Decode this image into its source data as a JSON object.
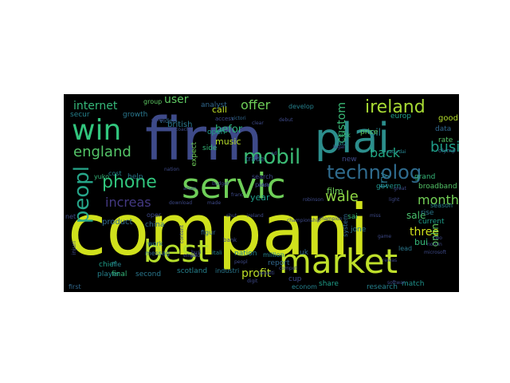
{
  "colors": {
    "page_background": "#ffffff",
    "cloud_background": "#000000",
    "palette": [
      "#d0e11c",
      "#b5de2b",
      "#6ece58",
      "#35b779",
      "#1f9e89",
      "#26828e",
      "#31688e",
      "#3e4a89",
      "#482878",
      "#440154"
    ]
  },
  "words": [
    {
      "text": "compani",
      "color": "#d0e11c",
      "rot": 0
    },
    {
      "text": "firm",
      "color": "#3e4a89",
      "rot": 0
    },
    {
      "text": "plai",
      "color": "#2c8e8c",
      "rot": 0
    },
    {
      "text": "servic",
      "color": "#6ece58",
      "rot": 0
    },
    {
      "text": "win",
      "color": "#31c57d",
      "rot": 0
    },
    {
      "text": "market",
      "color": "#bfe02a",
      "rot": 0
    },
    {
      "text": "best",
      "color": "#b5de2b",
      "rot": 0
    },
    {
      "text": "peopl",
      "color": "#26a68a",
      "rot": 90
    },
    {
      "text": "technolog",
      "color": "#2f6b8e",
      "rot": 0
    },
    {
      "text": "ireland",
      "color": "#a8db34",
      "rot": 0
    },
    {
      "text": "mobil",
      "color": "#3bbb75",
      "rot": 0
    },
    {
      "text": "phone",
      "color": "#31c57d",
      "rot": 0
    },
    {
      "text": "england",
      "color": "#54c568",
      "rot": 0
    },
    {
      "text": "custom",
      "color": "#3aba76",
      "rot": 90
    },
    {
      "text": "wale",
      "color": "#8fd744",
      "rot": 0
    },
    {
      "text": "increas",
      "color": "#443983",
      "rot": 0
    },
    {
      "text": "offer",
      "color": "#6ece58",
      "rot": 0
    },
    {
      "text": "internet",
      "color": "#35b779",
      "rot": 0
    },
    {
      "text": "back",
      "color": "#22a884",
      "rot": 0
    },
    {
      "text": "busi",
      "color": "#1f9e89",
      "rot": 0
    },
    {
      "text": "month",
      "color": "#73d056",
      "rot": 0
    },
    {
      "text": "user",
      "color": "#5ec962",
      "rot": 0
    },
    {
      "text": "befor",
      "color": "#2db27d",
      "rot": 0
    },
    {
      "text": "sale",
      "color": "#4ac16d",
      "rot": 0
    },
    {
      "text": "three",
      "color": "#d0e11c",
      "rot": 0
    },
    {
      "text": "try",
      "color": "#2a788e",
      "rot": 90
    },
    {
      "text": "profit",
      "color": "#bddf26",
      "rot": 0
    },
    {
      "text": "onlin",
      "color": "#5ec962",
      "rot": 90
    },
    {
      "text": "call",
      "color": "#c0df25",
      "rot": 0
    },
    {
      "text": "bui",
      "color": "#35b779",
      "rot": 0
    },
    {
      "text": "music",
      "color": "#b5de2b",
      "rot": 0
    },
    {
      "text": "film",
      "color": "#6ece58",
      "rot": 0
    },
    {
      "text": "year",
      "color": "#1f9e89",
      "rot": 0
    },
    {
      "text": "oil",
      "color": "#26828e",
      "rot": 0
    },
    {
      "text": "secur",
      "color": "#26828e",
      "rot": 0
    },
    {
      "text": "growth",
      "color": "#2a788e",
      "rot": 0
    },
    {
      "text": "british",
      "color": "#2a788e",
      "rot": 0
    },
    {
      "text": "open",
      "color": "#1f9e89",
      "rot": 0
    },
    {
      "text": "side",
      "color": "#35b779",
      "rot": 0
    },
    {
      "text": "expect",
      "color": "#6ece58",
      "rot": 90
    },
    {
      "text": "trade",
      "color": "#31688e",
      "rot": 0
    },
    {
      "text": "search",
      "color": "#3e4a89",
      "rot": 0
    },
    {
      "text": "develop",
      "color": "#26828e",
      "rot": 0
    },
    {
      "text": "analyst",
      "color": "#31688e",
      "rot": 0
    },
    {
      "text": "group",
      "color": "#5ec962",
      "rot": 0
    },
    {
      "text": "europ",
      "color": "#1f9e89",
      "rot": 0
    },
    {
      "text": "good",
      "color": "#b5de2b",
      "rot": 0
    },
    {
      "text": "data",
      "color": "#31688e",
      "rot": 0
    },
    {
      "text": "rate",
      "color": "#54c568",
      "rot": 0
    },
    {
      "text": "price",
      "color": "#5ec962",
      "rot": 0
    },
    {
      "text": "kick",
      "color": "#35b779",
      "rot": 0
    },
    {
      "text": "six",
      "color": "#26828e",
      "rot": 0
    },
    {
      "text": "new",
      "color": "#3e4a89",
      "rot": 0
    },
    {
      "text": "govern",
      "color": "#20928c",
      "rot": 0
    },
    {
      "text": "grand",
      "color": "#35b779",
      "rot": 0
    },
    {
      "text": "broadband",
      "color": "#54c568",
      "rot": 0
    },
    {
      "text": "rise",
      "color": "#2a788e",
      "rot": 0
    },
    {
      "text": "current",
      "color": "#1f9e89",
      "rot": 0
    },
    {
      "text": "season",
      "color": "#26828e",
      "rot": 0
    },
    {
      "text": "product",
      "color": "#31688e",
      "rot": 0
    },
    {
      "text": "cost",
      "color": "#26828e",
      "rot": 0
    },
    {
      "text": "help",
      "color": "#2a788e",
      "rot": 0
    },
    {
      "text": "yuko",
      "color": "#35b779",
      "rot": 0
    },
    {
      "text": "oper",
      "color": "#3e4a89",
      "rot": 0
    },
    {
      "text": "china",
      "color": "#31688e",
      "rot": 0
    },
    {
      "text": "work",
      "color": "#2a788e",
      "rot": 0
    },
    {
      "text": "chief",
      "color": "#1f9e89",
      "rot": 0
    },
    {
      "text": "player",
      "color": "#26828e",
      "rot": 0
    },
    {
      "text": "file",
      "color": "#26828e",
      "rot": 0
    },
    {
      "text": "final",
      "color": "#35b779",
      "rot": 0
    },
    {
      "text": "second",
      "color": "#2a788e",
      "rot": 0
    },
    {
      "text": "scotland",
      "color": "#26828e",
      "rot": 0
    },
    {
      "text": "industri",
      "color": "#2a788e",
      "rot": 0
    },
    {
      "text": "report",
      "color": "#31688e",
      "rot": 0
    },
    {
      "text": "cup",
      "color": "#3e4a89",
      "rot": 0
    },
    {
      "text": "econom",
      "color": "#26828e",
      "rot": 0
    },
    {
      "text": "share",
      "color": "#1f9e89",
      "rot": 0
    },
    {
      "text": "research",
      "color": "#26828e",
      "rot": 0
    },
    {
      "text": "match",
      "color": "#20928c",
      "rot": 0
    },
    {
      "text": "sai",
      "color": "#35b779",
      "rot": 0
    },
    {
      "text": "jone",
      "color": "#2a788e",
      "rot": 0
    },
    {
      "text": "uk",
      "color": "#31688e",
      "rot": 0
    },
    {
      "text": "lead",
      "color": "#2a788e",
      "rot": 0
    },
    {
      "text": "first",
      "color": "#31688e",
      "rot": 0
    },
    {
      "text": "video",
      "color": "#31688e",
      "rot": 0
    },
    {
      "text": "net",
      "color": "#3e4a89",
      "rot": 0
    },
    {
      "text": "provid",
      "color": "#26828e",
      "rot": 90
    },
    {
      "text": "injuri",
      "color": "#3e4a89",
      "rot": 90
    },
    {
      "text": "messag",
      "color": "#31688e",
      "rot": 0
    },
    {
      "text": "nation",
      "color": "#26828e",
      "rot": 0
    },
    {
      "text": "bank",
      "color": "#3e4a89",
      "rot": 0
    },
    {
      "text": "itali",
      "color": "#26828e",
      "rot": 0
    },
    {
      "text": "million",
      "color": "#26828e",
      "rot": 0
    },
    {
      "text": "figur",
      "color": "#31688e",
      "rot": 0
    },
    {
      "text": "plan",
      "color": "#3e4a89",
      "rot": 0
    },
    {
      "text": "system",
      "color": "#31688e",
      "rot": 90
    },
    {
      "text": "saturdai",
      "color": "#26828e",
      "rot": 0
    },
    {
      "text": "olymp",
      "color": "#31688e",
      "rot": 0
    },
    {
      "text": "email",
      "color": "#3e4a89",
      "rot": 0
    },
    {
      "text": "access",
      "color": "#3e4a89",
      "rot": 0
    },
    {
      "text": "victori",
      "color": "#31688e",
      "rot": 0
    },
    {
      "text": "econ",
      "color": "#3e4a89",
      "rot": 0
    },
    {
      "text": "penalti",
      "color": "#3e4a89",
      "rot": 0
    },
    {
      "text": "softwar",
      "color": "#3e4a89",
      "rot": 0
    },
    {
      "text": "franc",
      "color": "#3e4a89",
      "rot": 0
    },
    {
      "text": "champion",
      "color": "#3e4a89",
      "rot": 0
    },
    {
      "text": "game",
      "color": "#3e4a89",
      "rot": 0
    },
    {
      "text": "miss",
      "color": "#3e4a89",
      "rot": 0
    },
    {
      "text": "great",
      "color": "#3e4a89",
      "rot": 0
    },
    {
      "text": "light",
      "color": "#3e4a89",
      "rot": 0
    },
    {
      "text": "nomin",
      "color": "#3e4a89",
      "rot": 0
    },
    {
      "text": "releas",
      "color": "#3e4a89",
      "rot": 0
    },
    {
      "text": "two",
      "color": "#3e4a89",
      "rot": 0
    },
    {
      "text": "clear",
      "color": "#3e4a89",
      "rot": 0
    },
    {
      "text": "debut",
      "color": "#3e4a89",
      "rot": 0
    },
    {
      "text": "gener",
      "color": "#3e4a89",
      "rot": 0
    },
    {
      "text": "content",
      "color": "#3e4a89",
      "rot": 90
    },
    {
      "text": "download",
      "color": "#3e4a89",
      "rot": 0
    },
    {
      "text": "made",
      "color": "#3e4a89",
      "rot": 0
    },
    {
      "text": "shut",
      "color": "#3e4a89",
      "rot": 0
    },
    {
      "text": "digit",
      "color": "#3e4a89",
      "rot": 0
    },
    {
      "text": "comput",
      "color": "#3e4a89",
      "rot": 0
    },
    {
      "text": "microsoft",
      "color": "#3e4a89",
      "rot": 0
    },
    {
      "text": "robinson",
      "color": "#3e4a89",
      "rot": 0
    },
    {
      "text": "championship",
      "color": "#3e4a89",
      "rot": 0
    },
    {
      "text": "ireland",
      "color": "#3e4a89",
      "rot": 0
    },
    {
      "text": "budget",
      "color": "#3e4a89",
      "rot": 0
    },
    {
      "text": "arsen",
      "color": "#3e4a89",
      "rot": 0
    },
    {
      "text": "nation",
      "color": "#3e4a89",
      "rot": 0
    },
    {
      "text": "coach",
      "color": "#3e4a89",
      "rot": 0
    },
    {
      "text": "busi",
      "color": "#3e4a89",
      "rot": 0
    },
    {
      "text": "peopl",
      "color": "#3e4a89",
      "rot": 0
    },
    {
      "text": "ad",
      "color": "#3e4a89",
      "rot": 0
    },
    {
      "text": "legal",
      "color": "#3e4a89",
      "rot": 0
    },
    {
      "text": "gold",
      "color": "#3e4a89",
      "rot": 0
    }
  ]
}
